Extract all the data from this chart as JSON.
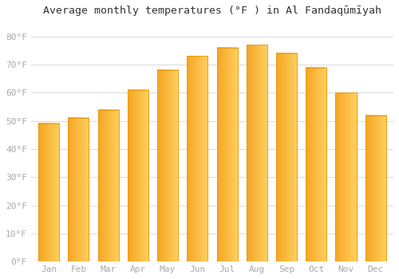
{
  "title": "Average monthly temperatures (°F ) in Al Fandaqūmīyah",
  "months": [
    "Jan",
    "Feb",
    "Mar",
    "Apr",
    "May",
    "Jun",
    "Jul",
    "Aug",
    "Sep",
    "Oct",
    "Nov",
    "Dec"
  ],
  "values": [
    49,
    51,
    54,
    61,
    68,
    73,
    76,
    77,
    74,
    69,
    60,
    52
  ],
  "bar_color_left": "#F5A623",
  "bar_color_right": "#FFD060",
  "bar_edge_color": "#E8960A",
  "background_color": "#ffffff",
  "grid_color": "#dddddd",
  "ylabel_ticks": [
    "0°F",
    "10°F",
    "20°F",
    "30°F",
    "40°F",
    "50°F",
    "60°F",
    "70°F",
    "80°F"
  ],
  "ytick_values": [
    0,
    10,
    20,
    30,
    40,
    50,
    60,
    70,
    80
  ],
  "ylim": [
    0,
    85
  ],
  "title_fontsize": 9.5,
  "tick_fontsize": 8,
  "tick_color": "#aaaaaa"
}
